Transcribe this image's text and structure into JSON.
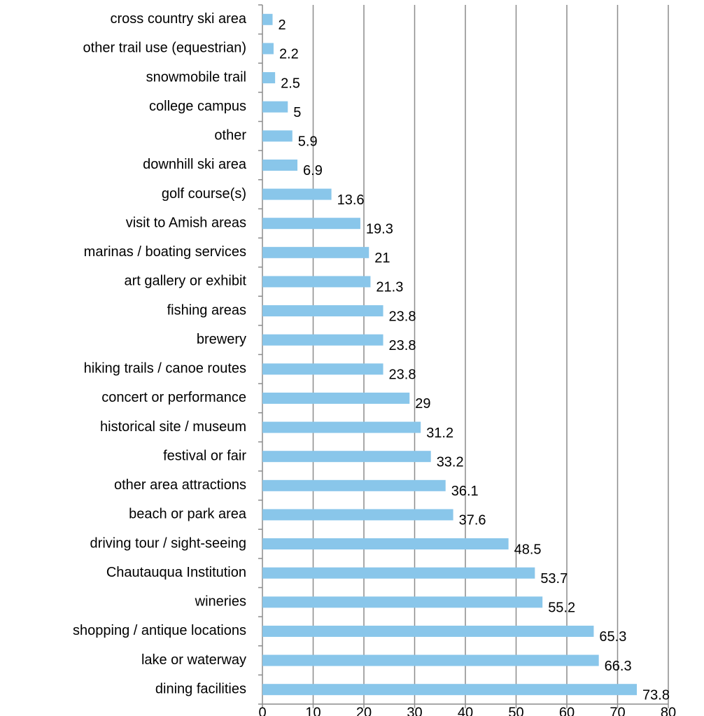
{
  "chart_data": {
    "type": "barh",
    "categories": [
      "cross country ski area",
      "other trail use (equestrian)",
      "snowmobile trail",
      "college campus",
      "other",
      "downhill ski area",
      "golf course(s)",
      "visit to Amish areas",
      "marinas / boating services",
      "art gallery or exhibit",
      "fishing areas",
      "brewery",
      "hiking trails / canoe routes",
      "concert or performance",
      "historical site / museum",
      "festival or fair",
      "other area attractions",
      "beach or park area",
      "driving tour / sight-seeing",
      "Chautauqua Institution",
      "wineries",
      "shopping / antique locations",
      "lake or waterway",
      "dining facilities"
    ],
    "values": [
      2,
      2.2,
      2.5,
      5,
      5.9,
      6.9,
      13.6,
      19.3,
      21,
      21.3,
      23.8,
      23.8,
      23.8,
      29,
      31.2,
      33.2,
      36.1,
      37.6,
      48.5,
      53.7,
      55.2,
      65.3,
      66.3,
      73.8
    ],
    "color": "#89c6ea",
    "xlim": [
      0,
      80
    ],
    "xticks": [
      0,
      10,
      20,
      30,
      40,
      50,
      60,
      70,
      80
    ],
    "grid": true
  }
}
